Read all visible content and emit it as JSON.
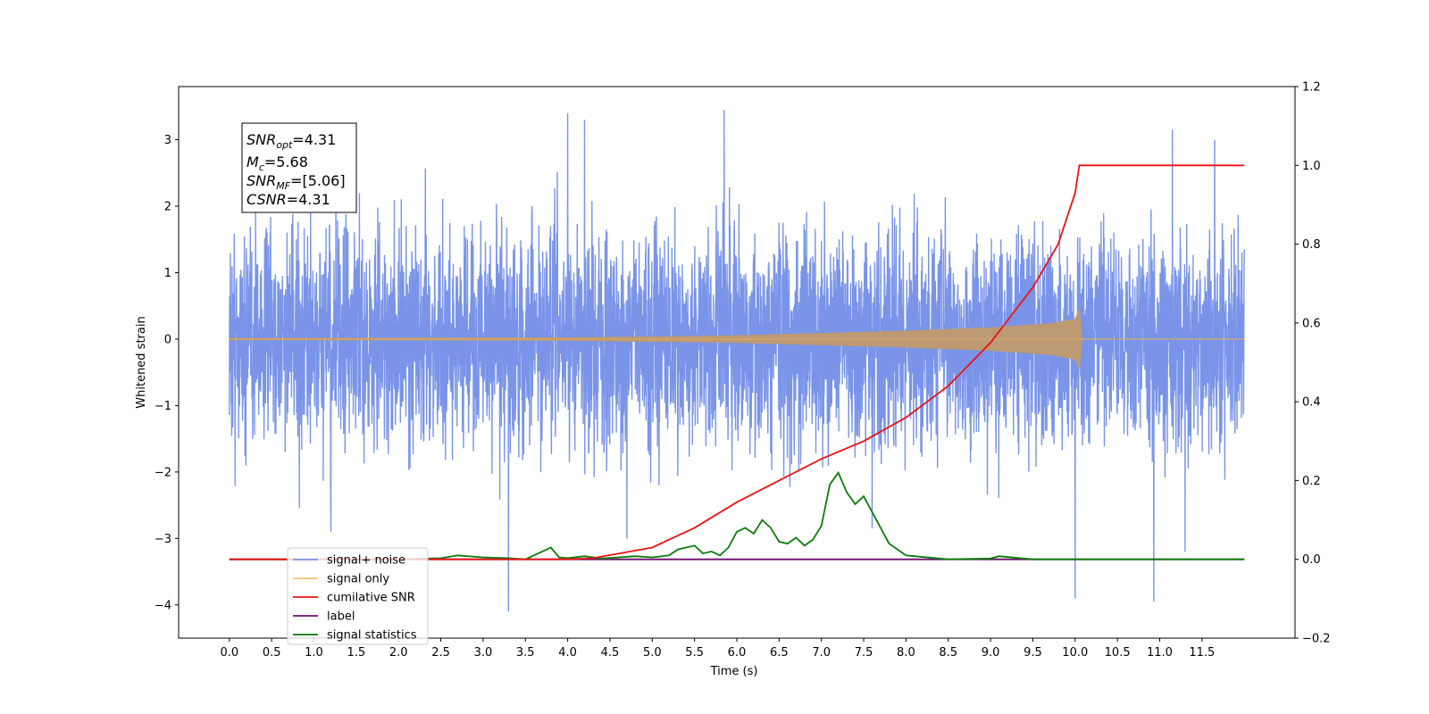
{
  "chart_data": {
    "type": "line",
    "xlabel": "Time (s)",
    "ylabel": "Whitened strain",
    "xlim": [
      -0.6,
      12.6
    ],
    "xticks": [
      "0.0",
      "0.5",
      "1.0",
      "1.5",
      "2.0",
      "2.5",
      "3.0",
      "3.5",
      "4.0",
      "4.5",
      "5.0",
      "5.5",
      "6.0",
      "6.5",
      "7.0",
      "7.5",
      "8.0",
      "8.5",
      "9.0",
      "9.5",
      "10.0",
      "10.5",
      "11.0",
      "11.5"
    ],
    "ylim_left": [
      -4.5,
      3.8
    ],
    "yticks_left": [
      "3",
      "2",
      "1",
      "0",
      "−1",
      "−2",
      "−3",
      "−4"
    ],
    "ylim_right": [
      -0.2,
      1.2
    ],
    "yticks_right": [
      "1.2",
      "1.0",
      "0.8",
      "0.6",
      "0.4",
      "0.2",
      "0.0",
      "−0.2"
    ],
    "grid": false,
    "legend_placement": "lower-left",
    "annotation": {
      "lines": [
        {
          "base": "SNR",
          "sub": "opt",
          "value": "=4.31"
        },
        {
          "base": "M",
          "sub": "c",
          "value": "=5.68"
        },
        {
          "base": "SNR",
          "sub": "MF",
          "value": "=[5.06]"
        },
        {
          "base": "CSNR",
          "sub": "",
          "value": "=4.31"
        }
      ]
    },
    "noise": {
      "x_range": [
        0.0,
        12.0
      ],
      "typical_amplitude": 1.9,
      "spikes": [
        {
          "x": 1.2,
          "y": -2.9
        },
        {
          "x": 3.3,
          "y": -4.1
        },
        {
          "x": 4.0,
          "y": 3.4
        },
        {
          "x": 4.2,
          "y": 3.3
        },
        {
          "x": 5.85,
          "y": 3.45
        },
        {
          "x": 4.7,
          "y": -3.0
        },
        {
          "x": 10.0,
          "y": -3.9
        },
        {
          "x": 10.93,
          "y": -3.95
        },
        {
          "x": 11.3,
          "y": -3.2
        },
        {
          "x": 11.15,
          "y": 3.15
        },
        {
          "x": 11.65,
          "y": 3.0
        },
        {
          "x": 7.6,
          "y": -2.85
        }
      ]
    },
    "signal_envelope": [
      {
        "x": 0.0,
        "amp": 0.01
      },
      {
        "x": 4.0,
        "amp": 0.02
      },
      {
        "x": 6.0,
        "amp": 0.05
      },
      {
        "x": 8.0,
        "amp": 0.12
      },
      {
        "x": 9.0,
        "amp": 0.17
      },
      {
        "x": 9.7,
        "amp": 0.23
      },
      {
        "x": 10.0,
        "amp": 0.3
      },
      {
        "x": 10.05,
        "amp": 0.45
      },
      {
        "x": 10.08,
        "amp": 0.0
      },
      {
        "x": 12.0,
        "amp": 0.0
      }
    ],
    "series": [
      {
        "name": "signal+ noise",
        "color": "#7994e8",
        "axis": "left"
      },
      {
        "name": "signal only",
        "color": "#f5c26b",
        "axis": "left"
      },
      {
        "name": "cumilative SNR",
        "color": "#ee1111",
        "axis": "right",
        "x": [
          0.0,
          4.0,
          4.3,
          5.0,
          5.5,
          6.0,
          6.5,
          7.0,
          7.5,
          8.0,
          8.5,
          9.0,
          9.5,
          9.8,
          10.0,
          10.05,
          10.5,
          11.0,
          11.5,
          12.0
        ],
        "y": [
          0.0,
          0.0,
          0.003,
          0.03,
          0.08,
          0.145,
          0.2,
          0.255,
          0.3,
          0.36,
          0.44,
          0.55,
          0.69,
          0.8,
          0.93,
          1.0,
          1.0,
          1.0,
          1.0,
          1.0
        ]
      },
      {
        "name": "label",
        "color": "#6b0f6b",
        "axis": "right",
        "x": [
          0.0,
          12.0
        ],
        "y": [
          0.0,
          0.0
        ]
      },
      {
        "name": "signal statistics",
        "color": "#0a7d0a",
        "axis": "right",
        "x": [
          0.0,
          2.0,
          2.5,
          2.7,
          3.0,
          3.3,
          3.5,
          3.7,
          3.8,
          3.9,
          4.0,
          4.2,
          4.4,
          4.6,
          4.8,
          5.0,
          5.2,
          5.3,
          5.5,
          5.6,
          5.7,
          5.8,
          5.9,
          6.0,
          6.1,
          6.2,
          6.3,
          6.4,
          6.5,
          6.6,
          6.7,
          6.8,
          6.9,
          7.0,
          7.1,
          7.2,
          7.3,
          7.4,
          7.5,
          7.6,
          7.8,
          8.0,
          8.5,
          9.0,
          9.1,
          9.5,
          10.0,
          11.0,
          12.0
        ],
        "y": [
          0.0,
          0.0,
          0.003,
          0.01,
          0.005,
          0.003,
          0.0,
          0.02,
          0.03,
          0.005,
          0.003,
          0.008,
          0.002,
          0.005,
          0.008,
          0.005,
          0.01,
          0.025,
          0.035,
          0.015,
          0.02,
          0.01,
          0.03,
          0.07,
          0.08,
          0.065,
          0.1,
          0.08,
          0.045,
          0.04,
          0.055,
          0.035,
          0.05,
          0.085,
          0.19,
          0.22,
          0.17,
          0.14,
          0.16,
          0.12,
          0.04,
          0.01,
          0.0,
          0.002,
          0.008,
          0.0,
          0.0,
          0.0,
          0.0
        ]
      }
    ]
  }
}
